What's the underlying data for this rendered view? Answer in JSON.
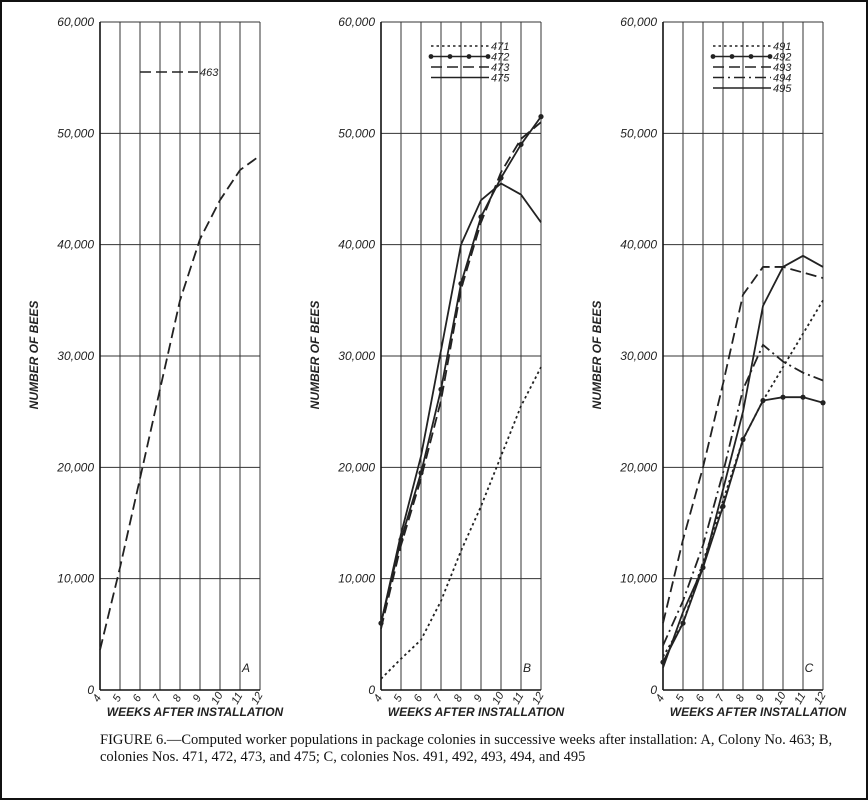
{
  "chart_data": [
    {
      "type": "line",
      "annotation": "A",
      "x_label": "WEEKS AFTER INSTALLATION",
      "y_label": "NUMBER OF BEES",
      "x": [
        4,
        5,
        6,
        7,
        8,
        9,
        10,
        11,
        12
      ],
      "series": [
        {
          "name": "463",
          "color": "#222",
          "dash": "dashed",
          "values": [
            3600,
            11000,
            19000,
            27000,
            35000,
            40500,
            44000,
            46700,
            48000
          ]
        }
      ],
      "xlim": [
        4,
        12
      ],
      "xticks": [
        4,
        5,
        6,
        7,
        8,
        9,
        10,
        11,
        12
      ],
      "ylim": [
        0,
        60000
      ],
      "yticks": [
        0,
        {
          "value": 10000,
          "label": "10,000"
        },
        {
          "value": 20000,
          "label": "20,000"
        },
        {
          "value": 30000,
          "label": "30,000"
        },
        {
          "value": 40000,
          "label": "40,000"
        },
        {
          "value": 50000,
          "label": "50,000"
        },
        {
          "value": 60000,
          "label": "60,000"
        }
      ],
      "grid": true,
      "legend": "upper center"
    },
    {
      "type": "line",
      "annotation": "B",
      "x_label": "WEEKS AFTER INSTALLATION",
      "y_label": "NUMBER OF BEES",
      "x": [
        4,
        5,
        6,
        7,
        8,
        9,
        10,
        11,
        12
      ],
      "series": [
        {
          "name": "471",
          "color": "#222",
          "dash": "dotted",
          "values": [
            1000,
            2800,
            4500,
            8000,
            12500,
            16500,
            21000,
            25500,
            29000
          ]
        },
        {
          "name": "472",
          "color": "#222",
          "dash": "solid",
          "marker": "circle",
          "values": [
            6000,
            13500,
            19500,
            27000,
            36500,
            42500,
            46000,
            49000,
            51500
          ]
        },
        {
          "name": "473",
          "color": "#222",
          "dash": "dashed",
          "values": [
            5500,
            13000,
            19000,
            26000,
            36000,
            42000,
            46500,
            49500,
            51000
          ]
        },
        {
          "name": "475",
          "color": "#222",
          "dash": "solid",
          "values": [
            6000,
            14000,
            21000,
            30500,
            40000,
            44000,
            45500,
            44500,
            42000
          ]
        }
      ],
      "xlim": [
        4,
        12
      ],
      "xticks": [
        4,
        5,
        6,
        7,
        8,
        9,
        10,
        11,
        12
      ],
      "ylim": [
        0,
        60000
      ],
      "yticks": [
        0,
        {
          "value": 10000,
          "label": "10,000"
        },
        {
          "value": 20000,
          "label": "20,000"
        },
        {
          "value": 30000,
          "label": "30,000"
        },
        {
          "value": 40000,
          "label": "40,000"
        },
        {
          "value": 50000,
          "label": "50,000"
        },
        {
          "value": 60000,
          "label": "60,000"
        }
      ],
      "grid": true,
      "legend": "upper right"
    },
    {
      "type": "line",
      "annotation": "C",
      "x_label": "WEEKS AFTER INSTALLATION",
      "y_label": "NUMBER OF BEES",
      "x": [
        4,
        5,
        6,
        7,
        8,
        9,
        10,
        11,
        12
      ],
      "series": [
        {
          "name": "491",
          "color": "#222",
          "dash": "dotted",
          "values": [
            3000,
            6000,
            11500,
            17000,
            22500,
            26000,
            29000,
            32000,
            35000
          ]
        },
        {
          "name": "492",
          "color": "#222",
          "dash": "solid",
          "marker": "circle",
          "values": [
            2500,
            6000,
            11000,
            16500,
            22500,
            26000,
            26300,
            26300,
            25800
          ]
        },
        {
          "name": "493",
          "color": "#222",
          "dash": "dashed",
          "values": [
            6000,
            13500,
            20000,
            27500,
            35500,
            38000,
            38000,
            37500,
            37000
          ]
        },
        {
          "name": "494",
          "color": "#222",
          "dash": "dashdot",
          "values": [
            4000,
            8000,
            13000,
            19500,
            27000,
            31000,
            29500,
            28500,
            27800
          ]
        },
        {
          "name": "495",
          "color": "#222",
          "dash": "solid",
          "values": [
            2000,
            7000,
            11000,
            18000,
            25000,
            34500,
            38000,
            39000,
            38000
          ]
        }
      ],
      "xlim": [
        4,
        12
      ],
      "xticks": [
        4,
        5,
        6,
        7,
        8,
        9,
        10,
        11,
        12
      ],
      "ylim": [
        0,
        60000
      ],
      "yticks": [
        0,
        {
          "value": 10000,
          "label": "10,000"
        },
        {
          "value": 20000,
          "label": "20,000"
        },
        {
          "value": 30000,
          "label": "30,000"
        },
        {
          "value": 40000,
          "label": "40,000"
        },
        {
          "value": 50000,
          "label": "50,000"
        },
        {
          "value": 60000,
          "label": "60,000"
        }
      ],
      "grid": true,
      "legend": "upper right"
    }
  ],
  "caption": "FIGURE 6.—Computed worker populations in package colonies in successive weeks after installation: A, Colony No. 463; B, colonies Nos. 471, 472, 473, and 475; C, colonies Nos. 491, 492, 493, 494, and 495"
}
